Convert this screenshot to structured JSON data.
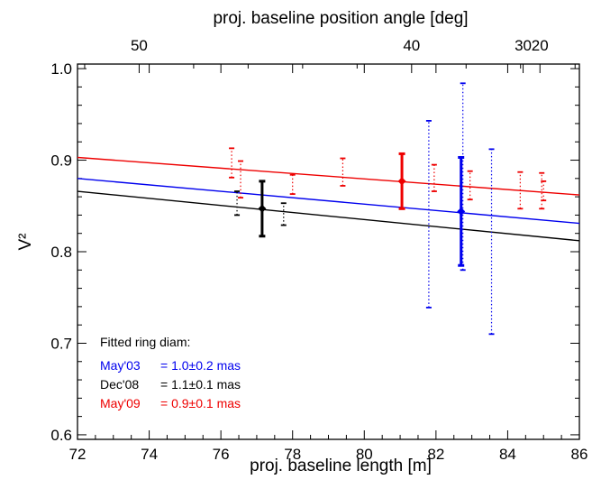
{
  "chart_data": {
    "type": "scatter",
    "xlabel": "proj. baseline length [m]",
    "ylabel": "V²",
    "top_xlabel": "proj. baseline position angle [deg]",
    "xlim": [
      72,
      86
    ],
    "ylim": [
      0.595,
      1.005
    ],
    "x_ticks": [
      72,
      74,
      76,
      78,
      80,
      82,
      84,
      86
    ],
    "y_ticks": [
      0.6,
      0.7,
      0.8,
      0.9,
      1.0
    ],
    "x_tick_labels": [
      "72",
      "74",
      "76",
      "78",
      "80",
      "82",
      "84",
      "86"
    ],
    "y_tick_labels": [
      "0.6",
      "0.7",
      "0.8",
      "0.9",
      "1.0"
    ],
    "top_ticks": [
      {
        "label": "50",
        "x": 73.72
      },
      {
        "label": "40",
        "x": 81.32
      },
      {
        "label": "30",
        "x": 84.43
      },
      {
        "label": "20",
        "x": 84.9
      }
    ],
    "grid": false,
    "legend_position": "bottom-left",
    "annotation_title": "Fitted ring diam:",
    "series": [
      {
        "name": "May'03",
        "label_value": "= 1.0±0.2 mas",
        "color": "#0000ee",
        "fit": {
          "x": [
            72,
            86
          ],
          "y": [
            0.88,
            0.831
          ]
        },
        "combined": [
          {
            "x": 82.7,
            "y": 0.844,
            "ylo": 0.785,
            "yhi": 0.903
          }
        ],
        "individual": [
          {
            "x": 81.8,
            "ylo": 0.739,
            "yhi": 0.943
          },
          {
            "x": 82.75,
            "ylo": 0.78,
            "yhi": 0.984
          },
          {
            "x": 83.55,
            "ylo": 0.71,
            "yhi": 0.912
          }
        ]
      },
      {
        "name": "Dec'08",
        "label_value": "= 1.1±0.1 mas",
        "color": "#000000",
        "fit": {
          "x": [
            72,
            86
          ],
          "y": [
            0.866,
            0.812
          ]
        },
        "combined": [
          {
            "x": 77.15,
            "y": 0.847,
            "ylo": 0.817,
            "yhi": 0.877
          }
        ],
        "individual": [
          {
            "x": 76.45,
            "ylo": 0.84,
            "yhi": 0.866
          },
          {
            "x": 77.75,
            "ylo": 0.829,
            "yhi": 0.853
          }
        ]
      },
      {
        "name": "May'09",
        "label_value": "= 0.9±0.1 mas",
        "color": "#ee0000",
        "fit": {
          "x": [
            72,
            86
          ],
          "y": [
            0.903,
            0.862
          ]
        },
        "combined": [
          {
            "x": 81.05,
            "y": 0.877,
            "ylo": 0.847,
            "yhi": 0.907
          }
        ],
        "individual": [
          {
            "x": 76.3,
            "ylo": 0.881,
            "yhi": 0.913
          },
          {
            "x": 76.55,
            "ylo": 0.859,
            "yhi": 0.899
          },
          {
            "x": 78.0,
            "ylo": 0.863,
            "yhi": 0.884
          },
          {
            "x": 79.4,
            "ylo": 0.872,
            "yhi": 0.902
          },
          {
            "x": 81.95,
            "ylo": 0.866,
            "yhi": 0.895
          },
          {
            "x": 82.95,
            "ylo": 0.857,
            "yhi": 0.888
          },
          {
            "x": 84.35,
            "ylo": 0.847,
            "yhi": 0.887
          },
          {
            "x": 84.95,
            "ylo": 0.847,
            "yhi": 0.886
          },
          {
            "x": 85.0,
            "ylo": 0.856,
            "yhi": 0.877
          }
        ]
      }
    ]
  }
}
